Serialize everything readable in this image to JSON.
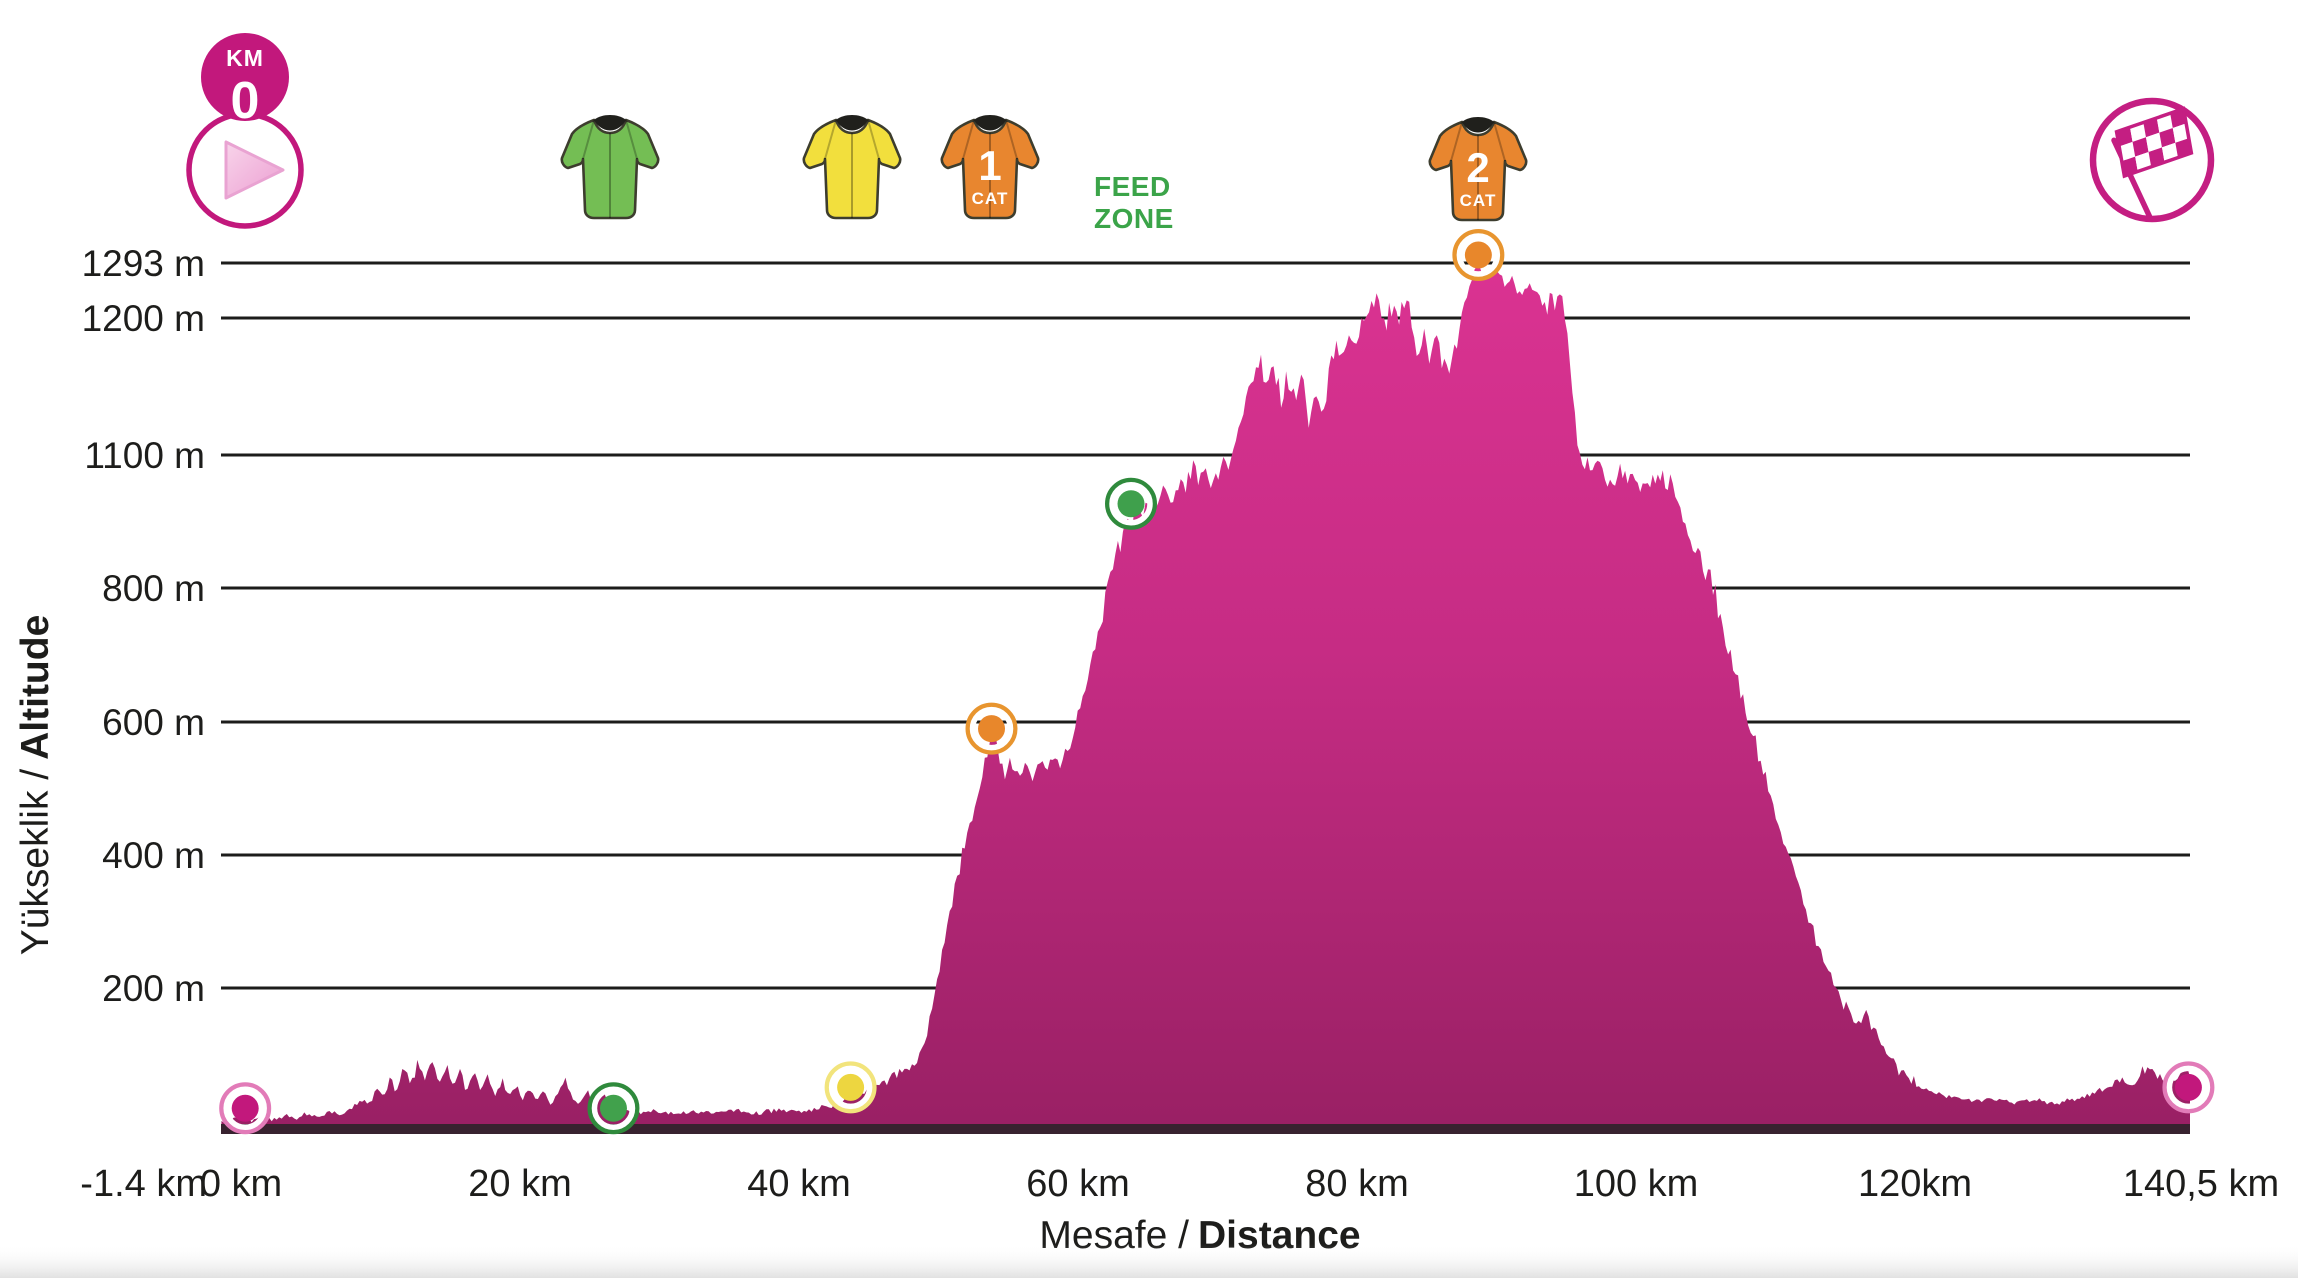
{
  "icons": {
    "km_zero_badge": {
      "top": "KM",
      "value": "0"
    },
    "start_icon": "play-triangle",
    "finish_icon": "checkered-flag",
    "feed_zone": {
      "line1": "FEED",
      "line2": "ZONE",
      "color": "#3BA449"
    },
    "jerseys": [
      {
        "name": "green-jersey",
        "color": "#74BE54"
      },
      {
        "name": "yellow-jersey",
        "color": "#F2DF3D"
      },
      {
        "name": "cat1-jersey",
        "color": "#E8862F",
        "number": "1",
        "sub": "CAT"
      },
      {
        "name": "cat2-jersey",
        "color": "#E8862F",
        "number": "2",
        "sub": "CAT"
      }
    ]
  },
  "colors": {
    "profile_top": "#DB3392",
    "profile_mid": "#C62C84",
    "profile_bottom": "#992064",
    "baseline": "#38222F",
    "accent_magenta": "#C2187C",
    "gridline": "#1d1d1b"
  },
  "chart_data": {
    "type": "area",
    "title": "",
    "x_axis": {
      "title_normal": "Mesafe /",
      "title_bold": "Distance",
      "range_km": [
        -1.4,
        140.5
      ],
      "ticks": [
        {
          "km": -1.4,
          "label": "-1.4 km"
        },
        {
          "km": 0,
          "label": "0 km"
        },
        {
          "km": 20,
          "label": "20 km"
        },
        {
          "km": 40,
          "label": "40 km"
        },
        {
          "km": 60,
          "label": "60 km"
        },
        {
          "km": 80,
          "label": "80 km"
        },
        {
          "km": 100,
          "label": "100 km"
        },
        {
          "km": 120,
          "label": "120km"
        },
        {
          "km": 140.5,
          "label": "140,5 km"
        }
      ]
    },
    "y_axis": {
      "title_normal": "Yükseklik /",
      "title_bold": "Altitude",
      "max_value": 1293,
      "gridlines": [
        {
          "value": 1293,
          "label": "1293 m"
        },
        {
          "value": 1200,
          "label": "1200 m"
        },
        {
          "value": 1100,
          "label": "1100 m"
        },
        {
          "value": 800,
          "label": "800 m"
        },
        {
          "value": 600,
          "label": "600 m"
        },
        {
          "value": 400,
          "label": "400 m"
        },
        {
          "value": 200,
          "label": "200 m"
        }
      ]
    },
    "markers": [
      {
        "name": "start",
        "km": 0.3,
        "elev": 33,
        "color": "#C2187C",
        "ring": "#E27BB8"
      },
      {
        "name": "green-jersey-sprint",
        "km": 26.7,
        "elev": 33,
        "color": "#41A14C",
        "ring": "#2F8A3C"
      },
      {
        "name": "yellow-jersey-sprint",
        "km": 43.7,
        "elev": 62,
        "color": "#EDD640",
        "ring": "#F2E47C"
      },
      {
        "name": "cat1-climb",
        "km": 53.8,
        "elev": 590,
        "color": "#E8872B",
        "ring": "#E8952F"
      },
      {
        "name": "feed-zone",
        "km": 63.8,
        "elev": 990,
        "color": "#3FA04C",
        "ring": "#2F8A3C"
      },
      {
        "name": "cat2-climb",
        "km": 88.7,
        "elev": 1293,
        "color": "#E8872B",
        "ring": "#E8952F"
      },
      {
        "name": "finish",
        "km": 139.6,
        "elev": 62,
        "color": "#C2187C",
        "ring": "#E27BB8"
      }
    ],
    "profile": [
      [
        -1.4,
        15
      ],
      [
        0,
        20
      ],
      [
        0.8,
        15
      ],
      [
        1.6,
        22
      ],
      [
        2.4,
        16
      ],
      [
        3.2,
        24
      ],
      [
        4,
        18
      ],
      [
        4.8,
        26
      ],
      [
        5.6,
        20
      ],
      [
        6.4,
        28
      ],
      [
        7.2,
        22
      ],
      [
        8,
        32
      ],
      [
        8.6,
        45
      ],
      [
        9.2,
        38
      ],
      [
        9.7,
        60
      ],
      [
        10.2,
        48
      ],
      [
        10.7,
        75
      ],
      [
        11.2,
        58
      ],
      [
        11.7,
        88
      ],
      [
        12.2,
        65
      ],
      [
        12.7,
        95
      ],
      [
        13.2,
        70
      ],
      [
        13.7,
        100
      ],
      [
        14.2,
        72
      ],
      [
        14.7,
        92
      ],
      [
        15.2,
        62
      ],
      [
        15.7,
        85
      ],
      [
        16.2,
        58
      ],
      [
        16.7,
        80
      ],
      [
        17.2,
        55
      ],
      [
        17.7,
        78
      ],
      [
        18.2,
        52
      ],
      [
        18.7,
        72
      ],
      [
        19.2,
        48
      ],
      [
        19.7,
        68
      ],
      [
        20.2,
        45
      ],
      [
        20.7,
        62
      ],
      [
        21.2,
        42
      ],
      [
        21.7,
        58
      ],
      [
        22.2,
        40
      ],
      [
        22.8,
        55
      ],
      [
        23.3,
        75
      ],
      [
        23.8,
        48
      ],
      [
        24.3,
        40
      ],
      [
        24.8,
        58
      ],
      [
        25.3,
        38
      ],
      [
        25.8,
        68
      ],
      [
        26.3,
        42
      ],
      [
        26.8,
        35
      ],
      [
        27.6,
        30
      ],
      [
        28.4,
        26
      ],
      [
        29.5,
        30
      ],
      [
        31,
        25
      ],
      [
        32.5,
        29
      ],
      [
        34,
        26
      ],
      [
        35.5,
        30
      ],
      [
        37,
        27
      ],
      [
        38.5,
        31
      ],
      [
        40,
        28
      ],
      [
        41.5,
        33
      ],
      [
        42.7,
        38
      ],
      [
        43.5,
        46
      ],
      [
        44.3,
        52
      ],
      [
        45.1,
        60
      ],
      [
        45.9,
        68
      ],
      [
        46.7,
        76
      ],
      [
        47.5,
        84
      ],
      [
        48.3,
        95
      ],
      [
        48.8,
        112
      ],
      [
        49.2,
        140
      ],
      [
        49.6,
        180
      ],
      [
        50,
        225
      ],
      [
        50.4,
        268
      ],
      [
        50.8,
        312
      ],
      [
        51.2,
        352
      ],
      [
        51.6,
        390
      ],
      [
        52,
        425
      ],
      [
        52.4,
        458
      ],
      [
        52.8,
        492
      ],
      [
        53.2,
        528
      ],
      [
        53.6,
        558
      ],
      [
        54,
        595
      ],
      [
        54.4,
        545
      ],
      [
        54.8,
        518
      ],
      [
        55.3,
        540
      ],
      [
        55.8,
        512
      ],
      [
        56.3,
        542
      ],
      [
        56.8,
        520
      ],
      [
        57.3,
        548
      ],
      [
        57.8,
        524
      ],
      [
        58.3,
        552
      ],
      [
        58.8,
        530
      ],
      [
        59.3,
        556
      ],
      [
        59.8,
        585
      ],
      [
        60.4,
        640
      ],
      [
        61,
        700
      ],
      [
        61.6,
        755
      ],
      [
        62.2,
        810
      ],
      [
        62.8,
        870
      ],
      [
        63.3,
        920
      ],
      [
        63.8,
        965
      ],
      [
        64.3,
        1000
      ],
      [
        64.8,
        975
      ],
      [
        65.3,
        1015
      ],
      [
        65.8,
        985
      ],
      [
        66.3,
        1030
      ],
      [
        66.8,
        1000
      ],
      [
        67.3,
        1045
      ],
      [
        67.8,
        1020
      ],
      [
        68.2,
        1080
      ],
      [
        68.6,
        1050
      ],
      [
        69.1,
        1072
      ],
      [
        69.6,
        1045
      ],
      [
        70.1,
        1068
      ],
      [
        70.6,
        1085
      ],
      [
        71.2,
        1105
      ],
      [
        71.8,
        1130
      ],
      [
        72.4,
        1152
      ],
      [
        73,
        1170
      ],
      [
        73.5,
        1148
      ],
      [
        74,
        1165
      ],
      [
        74.5,
        1140
      ],
      [
        75,
        1155
      ],
      [
        75.5,
        1138
      ],
      [
        76,
        1152
      ],
      [
        76.5,
        1128
      ],
      [
        77,
        1148
      ],
      [
        77.5,
        1132
      ],
      [
        78,
        1158
      ],
      [
        78.5,
        1182
      ],
      [
        79,
        1162
      ],
      [
        79.5,
        1192
      ],
      [
        80,
        1170
      ],
      [
        80.4,
        1222
      ],
      [
        80.8,
        1200
      ],
      [
        81.2,
        1232
      ],
      [
        81.6,
        1212
      ],
      [
        82,
        1196
      ],
      [
        82.5,
        1222
      ],
      [
        83,
        1202
      ],
      [
        83.4,
        1226
      ],
      [
        83.8,
        1206
      ],
      [
        84.3,
        1178
      ],
      [
        84.8,
        1194
      ],
      [
        85.3,
        1168
      ],
      [
        85.8,
        1184
      ],
      [
        86.3,
        1158
      ],
      [
        86.8,
        1165
      ],
      [
        87.2,
        1178
      ],
      [
        87.6,
        1215
      ],
      [
        88,
        1252
      ],
      [
        88.4,
        1278
      ],
      [
        88.7,
        1293
      ],
      [
        89,
        1272
      ],
      [
        89.4,
        1286
      ],
      [
        89.8,
        1265
      ],
      [
        90.2,
        1278
      ],
      [
        90.6,
        1256
      ],
      [
        91.1,
        1268
      ],
      [
        91.6,
        1244
      ],
      [
        92.1,
        1256
      ],
      [
        92.6,
        1236
      ],
      [
        93.1,
        1248
      ],
      [
        93.6,
        1226
      ],
      [
        94.1,
        1238
      ],
      [
        94.5,
        1228
      ],
      [
        94.9,
        1198
      ],
      [
        95.3,
        1158
      ],
      [
        95.7,
        1122
      ],
      [
        96.1,
        1098
      ],
      [
        96.5,
        1082
      ],
      [
        97,
        1062
      ],
      [
        97.4,
        1076
      ],
      [
        97.8,
        1050
      ],
      [
        98.2,
        1068
      ],
      [
        98.6,
        1044
      ],
      [
        99,
        1062
      ],
      [
        99.4,
        1040
      ],
      [
        99.8,
        1056
      ],
      [
        100.2,
        1036
      ],
      [
        100.6,
        1052
      ],
      [
        101,
        1032
      ],
      [
        101.4,
        1050
      ],
      [
        101.8,
        1058
      ],
      [
        102.2,
        1042
      ],
      [
        102.6,
        1015
      ],
      [
        103,
        988
      ],
      [
        103.5,
        952
      ],
      [
        104,
        915
      ],
      [
        104.5,
        878
      ],
      [
        105,
        840
      ],
      [
        105.5,
        800
      ],
      [
        106,
        762
      ],
      [
        106.5,
        722
      ],
      [
        107,
        685
      ],
      [
        107.5,
        648
      ],
      [
        108,
        610
      ],
      [
        108.5,
        572
      ],
      [
        109,
        535
      ],
      [
        109.5,
        498
      ],
      [
        110,
        462
      ],
      [
        110.5,
        428
      ],
      [
        111,
        395
      ],
      [
        111.5,
        362
      ],
      [
        112,
        330
      ],
      [
        112.5,
        298
      ],
      [
        113,
        268
      ],
      [
        113.5,
        240
      ],
      [
        114,
        215
      ],
      [
        114.5,
        192
      ],
      [
        115,
        172
      ],
      [
        115.5,
        158
      ],
      [
        116,
        148
      ],
      [
        116.5,
        162
      ],
      [
        117,
        145
      ],
      [
        117.5,
        128
      ],
      [
        118,
        110
      ],
      [
        118.5,
        95
      ],
      [
        119,
        82
      ],
      [
        119.8,
        70
      ],
      [
        120.8,
        60
      ],
      [
        121.8,
        52
      ],
      [
        123,
        46
      ],
      [
        124.4,
        42
      ],
      [
        125.8,
        46
      ],
      [
        127.2,
        40
      ],
      [
        128.6,
        45
      ],
      [
        130,
        40
      ],
      [
        131.4,
        46
      ],
      [
        132.6,
        52
      ],
      [
        133.6,
        62
      ],
      [
        134.5,
        74
      ],
      [
        135.3,
        66
      ],
      [
        136.1,
        82
      ],
      [
        136.9,
        92
      ],
      [
        137.6,
        78
      ],
      [
        138.2,
        62
      ],
      [
        138.8,
        74
      ],
      [
        139.4,
        90
      ],
      [
        140,
        72
      ],
      [
        140.5,
        62
      ]
    ]
  }
}
